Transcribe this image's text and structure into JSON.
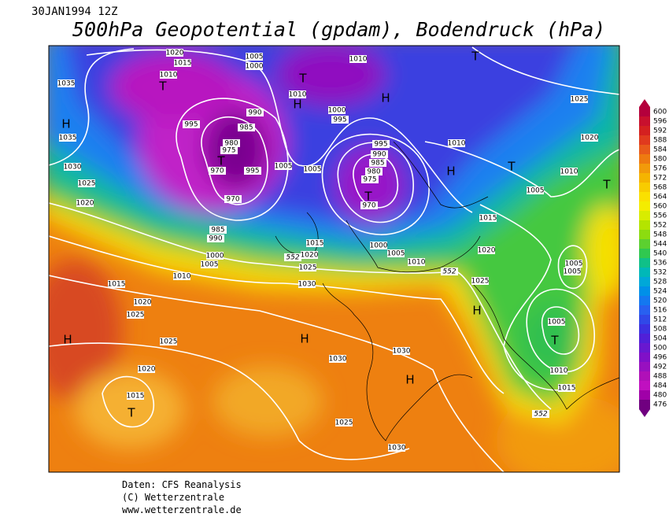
{
  "header": {
    "date": "30JAN1994 12Z",
    "title": "500hPa Geopotential (gpdam), Bodendruck (hPa)"
  },
  "colorbar": {
    "levels": [
      600,
      596,
      592,
      588,
      584,
      580,
      576,
      572,
      568,
      564,
      560,
      556,
      552,
      548,
      544,
      540,
      536,
      532,
      528,
      524,
      520,
      516,
      512,
      508,
      504,
      500,
      496,
      492,
      488,
      484,
      480,
      476
    ],
    "colors": [
      "#b4003c",
      "#c8102e",
      "#d42020",
      "#e03a1e",
      "#e85a1a",
      "#ee7a10",
      "#f29a0a",
      "#f5b400",
      "#f8cc00",
      "#fae000",
      "#f4ec00",
      "#d8ec00",
      "#b4e400",
      "#8cdc10",
      "#5cd030",
      "#30c850",
      "#10c088",
      "#00b8b8",
      "#00a8d8",
      "#0090e8",
      "#1478f0",
      "#2860f0",
      "#3048e8",
      "#3c30e0",
      "#5020d8",
      "#6818d0",
      "#8010c8",
      "#9810c0",
      "#b010b8",
      "#c010c0",
      "#a000a8",
      "#700080"
    ]
  },
  "map": {
    "isobar_labels": [
      1020,
      1015,
      1010,
      1005,
      1000,
      1010,
      990,
      995,
      985,
      980,
      975,
      970,
      995,
      1005,
      1005,
      1010,
      1000,
      995,
      995,
      990,
      985,
      980,
      975,
      970,
      970,
      985,
      990,
      1000,
      1005,
      1010,
      1015,
      1020,
      1025,
      1030,
      1000,
      1005,
      1010,
      1010,
      1005,
      1010,
      1015,
      1020,
      1025,
      1005,
      1005,
      1005,
      1010,
      1015,
      1020,
      1025,
      1030,
      1025,
      1020,
      1035,
      1035,
      1015,
      1020,
      1025,
      1025,
      1020,
      1015,
      1030,
      1030,
      1025,
      1030
    ],
    "height_labels": [
      552,
      552,
      552
    ],
    "centers": [
      "H",
      "T",
      "H",
      "T",
      "H",
      "T",
      "T",
      "T",
      "H",
      "T",
      "T",
      "H",
      "T",
      "H",
      "H",
      "H",
      "T"
    ]
  },
  "footer": {
    "lines": [
      "Daten: CFS Reanalysis",
      "(C) Wetterzentrale",
      "www.wetterzentrale.de"
    ]
  }
}
